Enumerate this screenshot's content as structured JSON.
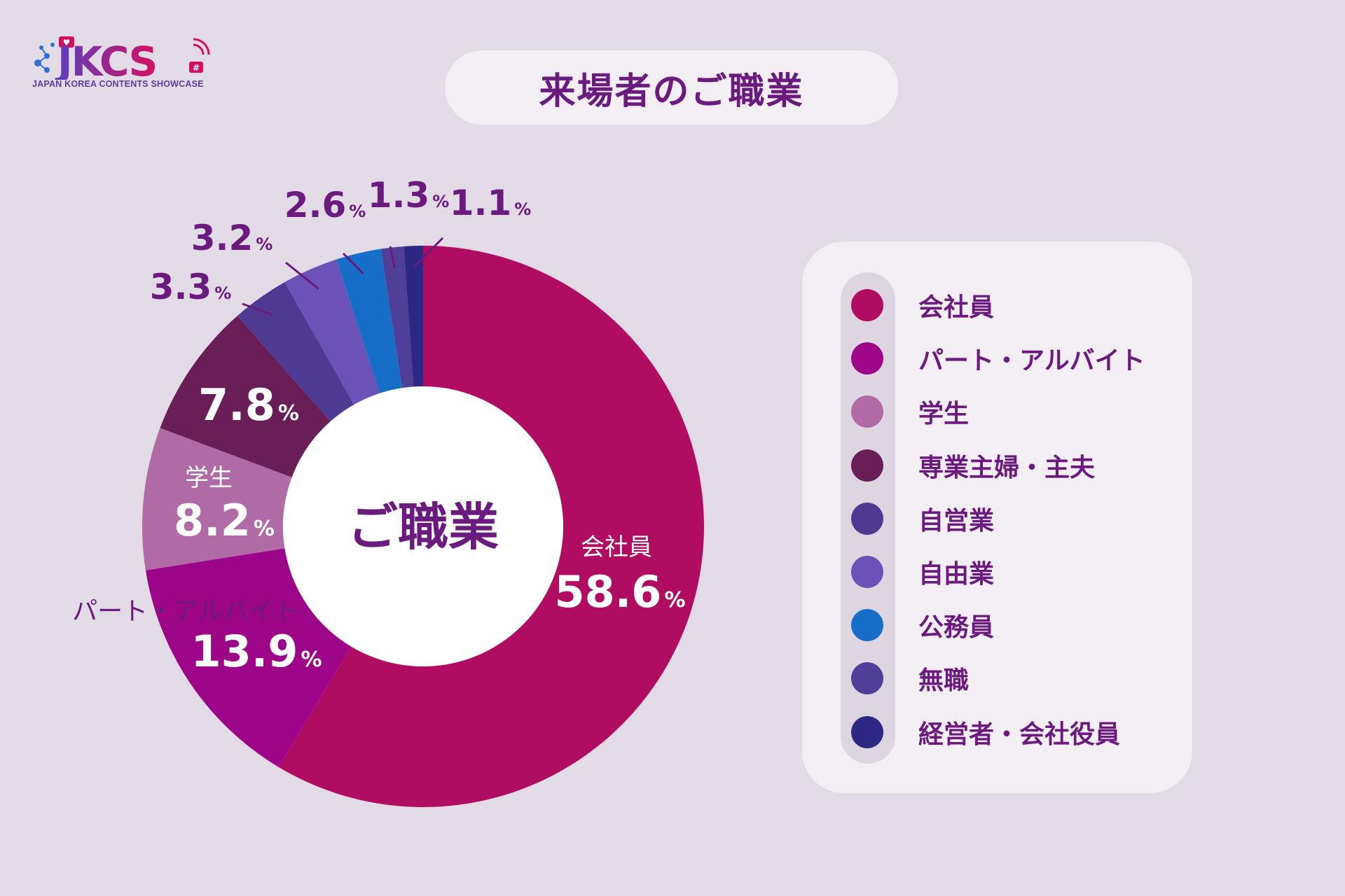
{
  "logo": {
    "mark": "JKCS",
    "subtitle": "JAPAN KOREA CONTENTS SHOWCASE"
  },
  "title": "来場者のご職業",
  "colors": {
    "background": "#e2dbe6",
    "panel": "#f3eef4",
    "title_text": "#6a1b7d",
    "callout": "#6a1b7d"
  },
  "chart_data": {
    "type": "pie",
    "title": "来場者のご職業",
    "center_label": "ご職業",
    "unit": "%",
    "categories": [
      "会社員",
      "パート・アルバイト",
      "学生",
      "専業主婦・主夫",
      "自営業",
      "自由業",
      "公務員",
      "無職",
      "経営者・会社役員"
    ],
    "values": [
      58.6,
      13.9,
      8.2,
      7.8,
      3.3,
      3.2,
      2.6,
      1.3,
      1.1
    ],
    "value_labels": [
      "58.6",
      "13.9",
      "8.2",
      "7.8",
      "3.3",
      "3.2",
      "2.6",
      "1.3",
      "1.1"
    ],
    "slice_labels": [
      "会社員",
      "パート・アルバイト",
      "学生",
      "",
      "",
      "",
      "",
      "",
      ""
    ],
    "colors": [
      "#b00d62",
      "#9d0689",
      "#b06aa5",
      "#6a1e58",
      "#4f3a93",
      "#6b52b8",
      "#176ec8",
      "#4f3f98",
      "#2d2883"
    ],
    "legend_position": "right"
  }
}
